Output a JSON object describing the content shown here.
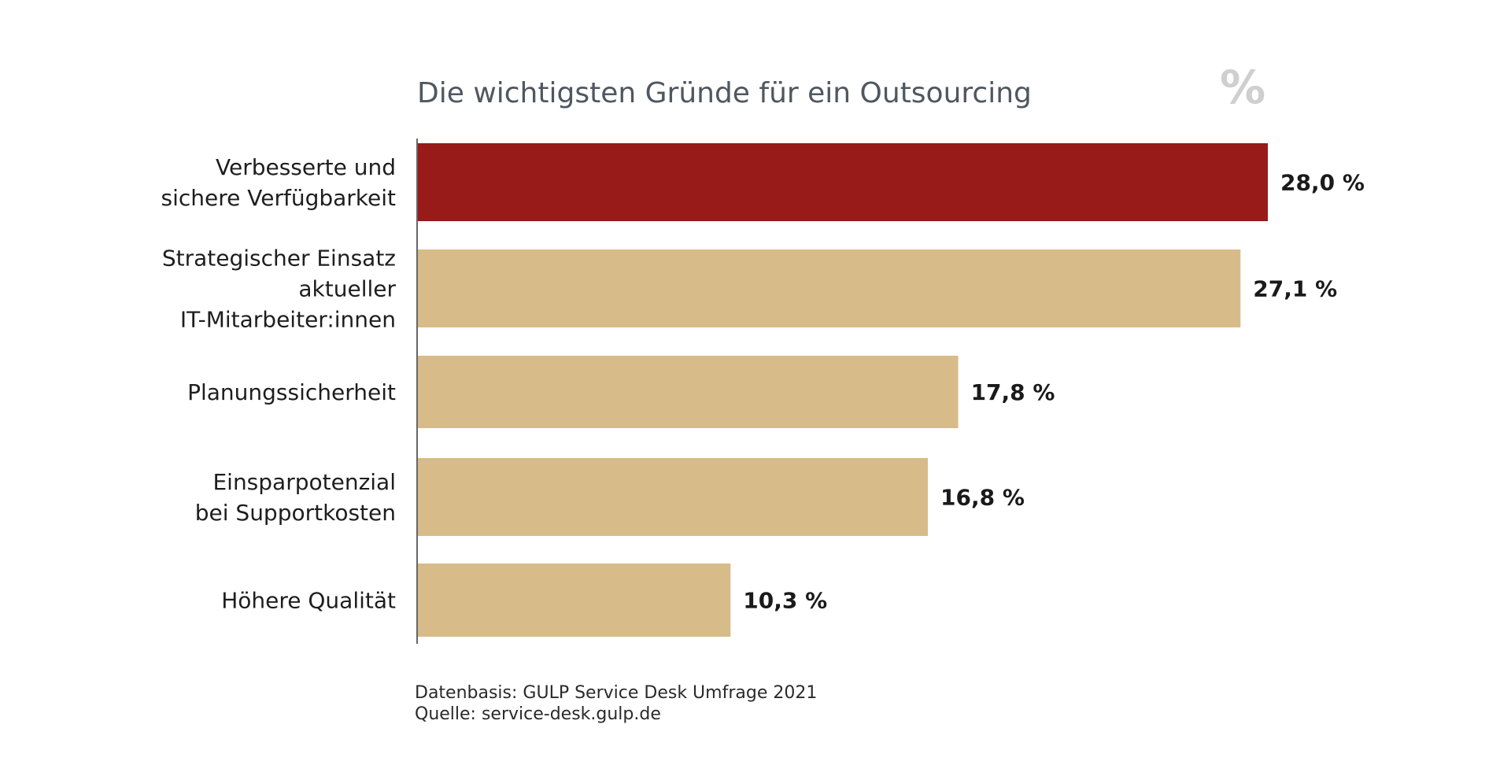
{
  "chart_data": {
    "type": "bar",
    "orientation": "horizontal",
    "title": "Die wichtigsten Gründe für ein Outsourcing",
    "unit_symbol": "%",
    "categories": [
      [
        "Verbesserte und",
        "sichere Verfügbarkeit"
      ],
      [
        "Strategischer Einsatz",
        "aktueller",
        "IT-Mitarbeiter:innen"
      ],
      [
        "Planungssicherheit"
      ],
      [
        "Einsparpotenzial",
        "bei Supportkosten"
      ],
      [
        "Höhere Qualität"
      ]
    ],
    "values": [
      28.0,
      27.1,
      17.8,
      16.8,
      10.3
    ],
    "value_labels": [
      "28,0 %",
      "27,1 %",
      "17,8 %",
      "16,8 %",
      "10,3 %"
    ],
    "xlim": [
      0,
      28.0
    ],
    "colors": {
      "highlight": "#981a19",
      "default": "#d7bb89",
      "axis": "#666666"
    },
    "highlight_index": 0,
    "grid": false,
    "legend": "none"
  },
  "footnote": {
    "line1": "Datenbasis: GULP Service Desk Umfrage 2021",
    "line2": "Quelle: service-desk.gulp.de"
  }
}
